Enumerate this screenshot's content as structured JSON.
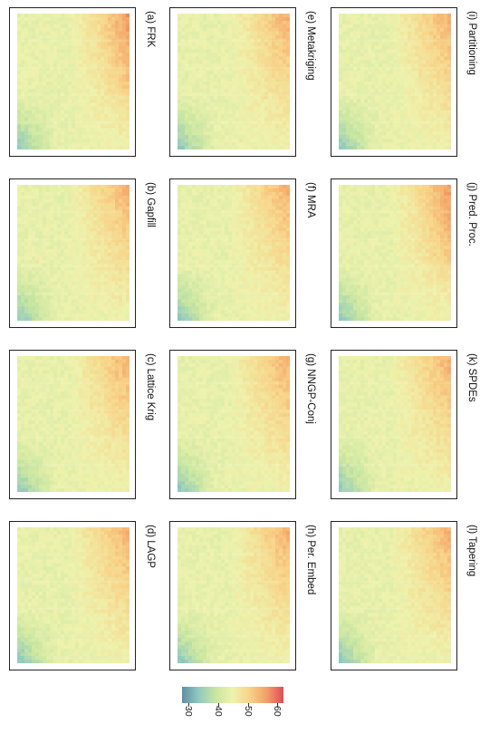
{
  "chart_data": {
    "type": "heatmap",
    "panels": [
      {
        "id": "a",
        "title": "(a) FRK"
      },
      {
        "id": "b",
        "title": "(b) Gapfill"
      },
      {
        "id": "c",
        "title": "(c) Lattice Krig"
      },
      {
        "id": "d",
        "title": "(d) LAGP"
      },
      {
        "id": "e",
        "title": "(e) Metakriging"
      },
      {
        "id": "f",
        "title": "(f) MRA"
      },
      {
        "id": "g",
        "title": "(g) NNGP-Conj"
      },
      {
        "id": "h",
        "title": "(h) Per. Embed"
      },
      {
        "id": "i",
        "title": "(i) Partitioning"
      },
      {
        "id": "j",
        "title": "(j) Pred. Proc."
      },
      {
        "id": "k",
        "title": "(k) SPDEs"
      },
      {
        "id": "l",
        "title": "(l) Tapering"
      }
    ],
    "colorbar": {
      "range": [
        28,
        62
      ],
      "ticks": [
        30,
        40,
        50,
        60
      ],
      "colors": [
        "#5e8fa6",
        "#8ec9c0",
        "#c8e6a1",
        "#eef2ad",
        "#f7d489",
        "#f4a166",
        "#e24b58"
      ]
    }
  }
}
